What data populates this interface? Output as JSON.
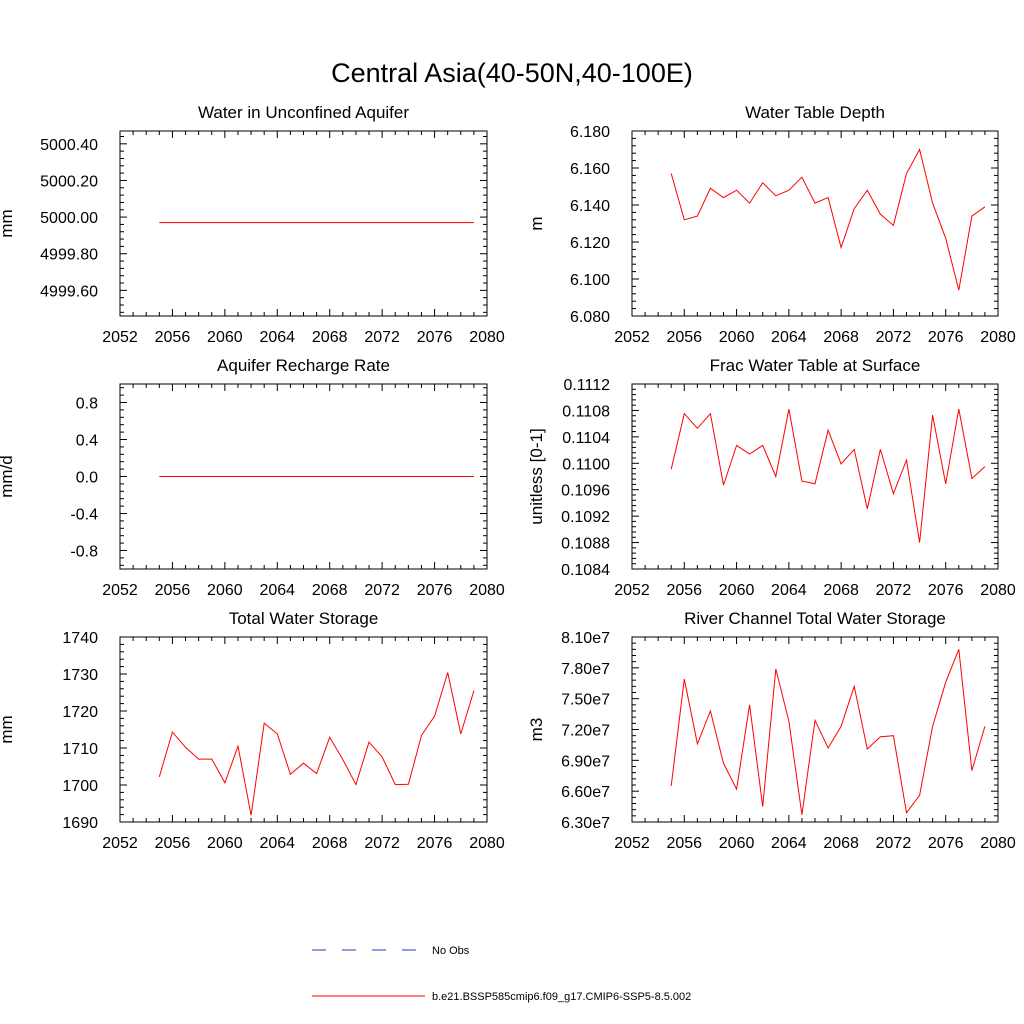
{
  "figure": {
    "title": "Central Asia(40-50N,40-100E)"
  },
  "legend": {
    "items": [
      {
        "label": "No Obs",
        "style": "dashed",
        "color": "#1f3fb4"
      },
      {
        "label": "b.e21.BSSP585cmip6.f09_g17.CMIP6-SSP5-8.5.002",
        "style": "solid",
        "color": "#ff0000"
      }
    ]
  },
  "chart_data": [
    {
      "type": "line",
      "title": "Water in Unconfined Aquifer",
      "ylabel": "mm",
      "xlim": [
        2052,
        2080
      ],
      "ylim": [
        4999.46,
        5000.47
      ],
      "xticks": [
        "2052",
        "2056",
        "2060",
        "2064",
        "2068",
        "2072",
        "2076",
        "2080"
      ],
      "yticks": [
        "4999.60",
        "4999.80",
        "5000.00",
        "5000.20",
        "5000.40"
      ],
      "series": [
        {
          "color": "#ff0000",
          "x": [
            2055,
            2056,
            2057,
            2058,
            2059,
            2060,
            2061,
            2062,
            2063,
            2064,
            2065,
            2066,
            2067,
            2068,
            2069,
            2070,
            2071,
            2072,
            2073,
            2074,
            2075,
            2076,
            2077,
            2078,
            2079
          ],
          "values": [
            4999.97,
            4999.97,
            4999.97,
            4999.97,
            4999.97,
            4999.97,
            4999.97,
            4999.97,
            4999.97,
            4999.97,
            4999.97,
            4999.97,
            4999.97,
            4999.97,
            4999.97,
            4999.97,
            4999.97,
            4999.97,
            4999.97,
            4999.97,
            4999.97,
            4999.97,
            4999.97,
            4999.97,
            4999.97
          ]
        }
      ]
    },
    {
      "type": "line",
      "title": "Water Table Depth",
      "ylabel": "m",
      "xlim": [
        2052,
        2080
      ],
      "ylim": [
        6.08,
        6.18
      ],
      "xticks": [
        "2052",
        "2056",
        "2060",
        "2064",
        "2068",
        "2072",
        "2076",
        "2080"
      ],
      "yticks": [
        "6.080",
        "6.100",
        "6.120",
        "6.140",
        "6.160",
        "6.180"
      ],
      "series": [
        {
          "color": "#ff0000",
          "x": [
            2055,
            2056,
            2057,
            2058,
            2059,
            2060,
            2061,
            2062,
            2063,
            2064,
            2065,
            2066,
            2067,
            2068,
            2069,
            2070,
            2071,
            2072,
            2073,
            2074,
            2075,
            2076,
            2077,
            2078,
            2079
          ],
          "values": [
            6.157,
            6.132,
            6.134,
            6.149,
            6.144,
            6.148,
            6.141,
            6.152,
            6.145,
            6.148,
            6.155,
            6.141,
            6.144,
            6.117,
            6.138,
            6.148,
            6.135,
            6.129,
            6.157,
            6.17,
            6.141,
            6.122,
            6.094,
            6.134,
            6.139
          ]
        }
      ]
    },
    {
      "type": "line",
      "title": "Aquifer Recharge Rate",
      "ylabel": "mm/d",
      "xlim": [
        2052,
        2080
      ],
      "ylim": [
        -1.0,
        1.0
      ],
      "xticks": [
        "2052",
        "2056",
        "2060",
        "2064",
        "2068",
        "2072",
        "2076",
        "2080"
      ],
      "yticks": [
        "-0.8",
        "-0.4",
        "0.0",
        "0.4",
        "0.8"
      ],
      "series": [
        {
          "color": "#ff0000",
          "x": [
            2055,
            2056,
            2057,
            2058,
            2059,
            2060,
            2061,
            2062,
            2063,
            2064,
            2065,
            2066,
            2067,
            2068,
            2069,
            2070,
            2071,
            2072,
            2073,
            2074,
            2075,
            2076,
            2077,
            2078,
            2079
          ],
          "values": [
            0,
            0,
            0,
            0,
            0,
            0,
            0,
            0,
            0,
            0,
            0,
            0,
            0,
            0,
            0,
            0,
            0,
            0,
            0,
            0,
            0,
            0,
            0,
            0,
            0
          ]
        }
      ]
    },
    {
      "type": "line",
      "title": "Frac Water Table at Surface",
      "ylabel": "unitless [0-1]",
      "xlim": [
        2052,
        2080
      ],
      "ylim": [
        0.1084,
        0.1112
      ],
      "xticks": [
        "2052",
        "2056",
        "2060",
        "2064",
        "2068",
        "2072",
        "2076",
        "2080"
      ],
      "yticks": [
        "0.1084",
        "0.1088",
        "0.1092",
        "0.1096",
        "0.1100",
        "0.1104",
        "0.1108",
        "0.1112"
      ],
      "series": [
        {
          "color": "#ff0000",
          "x": [
            2055,
            2056,
            2057,
            2058,
            2059,
            2060,
            2061,
            2062,
            2063,
            2064,
            2065,
            2066,
            2067,
            2068,
            2069,
            2070,
            2071,
            2072,
            2073,
            2074,
            2075,
            2076,
            2077,
            2078,
            2079
          ],
          "values": [
            0.10991,
            0.11075,
            0.11053,
            0.11075,
            0.10967,
            0.11027,
            0.11014,
            0.11027,
            0.1098,
            0.11082,
            0.10973,
            0.10969,
            0.1105,
            0.10999,
            0.11021,
            0.10931,
            0.11021,
            0.10954,
            0.11005,
            0.1088,
            0.11073,
            0.10969,
            0.11082,
            0.10977,
            0.10995
          ]
        }
      ]
    },
    {
      "type": "line",
      "title": "Total Water Storage",
      "ylabel": "mm",
      "xlim": [
        2052,
        2080
      ],
      "ylim": [
        1690,
        1740
      ],
      "xticks": [
        "2052",
        "2056",
        "2060",
        "2064",
        "2068",
        "2072",
        "2076",
        "2080"
      ],
      "yticks": [
        "1690",
        "1700",
        "1710",
        "1720",
        "1730",
        "1740"
      ],
      "series": [
        {
          "color": "#ff0000",
          "x": [
            2055,
            2056,
            2057,
            2058,
            2059,
            2060,
            2061,
            2062,
            2063,
            2064,
            2065,
            2066,
            2067,
            2068,
            2069,
            2070,
            2071,
            2072,
            2073,
            2074,
            2075,
            2076,
            2077,
            2078,
            2079
          ],
          "values": [
            1702.2,
            1714.3,
            1710.2,
            1707.0,
            1707.0,
            1700.6,
            1710.5,
            1691.8,
            1716.7,
            1713.8,
            1702.9,
            1705.9,
            1703.1,
            1712.9,
            1706.9,
            1700.1,
            1711.6,
            1707.6,
            1700.1,
            1700.2,
            1713.4,
            1718.6,
            1730.4,
            1713.8,
            1725.5
          ]
        }
      ]
    },
    {
      "type": "line",
      "title": "River Channel Total Water Storage",
      "ylabel": "m3",
      "xlim": [
        2052,
        2080
      ],
      "ylim": [
        63000000,
        81000000
      ],
      "xticks": [
        "2052",
        "2056",
        "2060",
        "2064",
        "2068",
        "2072",
        "2076",
        "2080"
      ],
      "yticks": [
        "6.30e7",
        "6.60e7",
        "6.90e7",
        "7.20e7",
        "7.50e7",
        "7.80e7",
        "8.10e7"
      ],
      "series": [
        {
          "color": "#ff0000",
          "x": [
            2055,
            2056,
            2057,
            2058,
            2059,
            2060,
            2061,
            2062,
            2063,
            2064,
            2065,
            2066,
            2067,
            2068,
            2069,
            2070,
            2071,
            2072,
            2073,
            2074,
            2075,
            2076,
            2077,
            2078,
            2079
          ],
          "values": [
            66500000,
            76900000,
            70600000,
            73800000,
            68700000,
            66200000,
            74400000,
            64500000,
            77900000,
            72800000,
            63700000,
            72900000,
            70200000,
            72300000,
            76200000,
            70100000,
            71300000,
            71400000,
            63900000,
            65600000,
            72300000,
            76600000,
            79800000,
            68000000,
            72300000
          ]
        }
      ]
    }
  ]
}
